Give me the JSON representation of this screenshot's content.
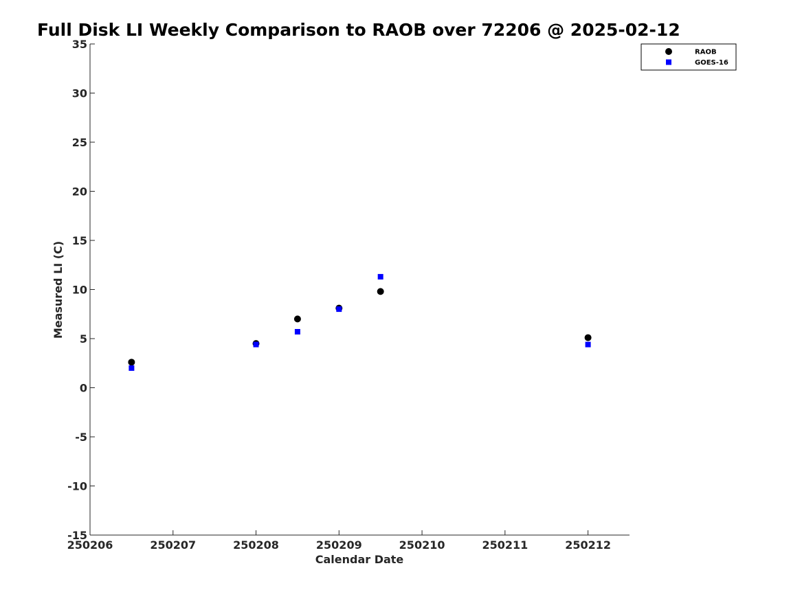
{
  "chart_data": {
    "type": "scatter",
    "title": "Full Disk LI Weekly Comparison to RAOB over 72206 @ 2025-02-12",
    "xlabel": "Calendar Date",
    "ylabel": "Measured LI (C)",
    "xlim": [
      250206,
      250212.5
    ],
    "ylim": [
      -15,
      35
    ],
    "x_ticks": [
      250206,
      250207,
      250208,
      250209,
      250210,
      250211,
      250212
    ],
    "x_tick_labels": [
      "250206",
      "250207",
      "250208",
      "250209",
      "250210",
      "250211",
      "250212"
    ],
    "y_ticks": [
      -15,
      -10,
      -5,
      0,
      5,
      10,
      15,
      20,
      25,
      30,
      35
    ],
    "y_tick_labels": [
      "-15",
      "-10",
      "-5",
      "0",
      "5",
      "10",
      "15",
      "20",
      "25",
      "30",
      "35"
    ],
    "grid": false,
    "legend_position": "top-right",
    "series": [
      {
        "name": "RAOB",
        "marker": "circle",
        "color": "#000000",
        "points": [
          {
            "x": 250206.5,
            "y": 2.6
          },
          {
            "x": 250208.0,
            "y": 4.5
          },
          {
            "x": 250208.5,
            "y": 7.0
          },
          {
            "x": 250209.0,
            "y": 8.1
          },
          {
            "x": 250209.5,
            "y": 9.8
          },
          {
            "x": 250212.0,
            "y": 5.1
          }
        ]
      },
      {
        "name": "GOES-16",
        "marker": "square",
        "color": "#0000ff",
        "points": [
          {
            "x": 250206.5,
            "y": 2.0
          },
          {
            "x": 250208.0,
            "y": 4.4
          },
          {
            "x": 250208.5,
            "y": 5.7
          },
          {
            "x": 250209.0,
            "y": 8.0
          },
          {
            "x": 250209.5,
            "y": 11.3
          },
          {
            "x": 250212.0,
            "y": 4.4
          }
        ]
      }
    ]
  }
}
